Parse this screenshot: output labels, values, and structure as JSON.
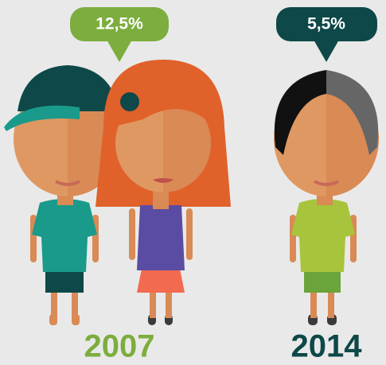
{
  "groups": [
    {
      "share": "12,5%",
      "year": "2007"
    },
    {
      "share": "5,5%",
      "year": "2014"
    }
  ]
}
